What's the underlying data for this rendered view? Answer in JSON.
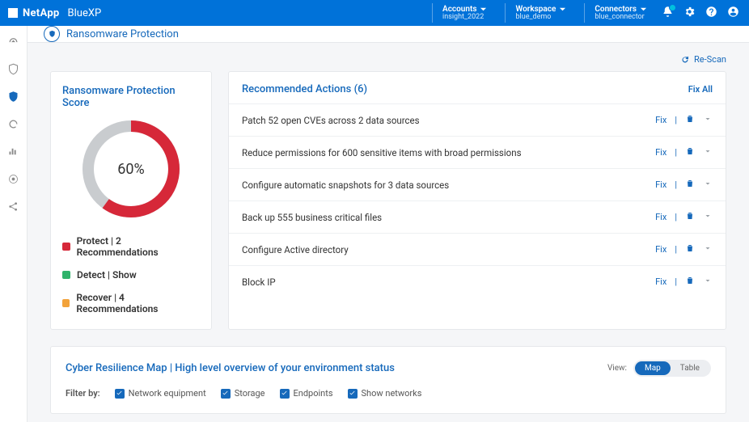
{
  "brand": {
    "company": "NetApp",
    "product": "BlueXP"
  },
  "topbar": {
    "accounts": {
      "label": "Accounts",
      "value": "insight_2022"
    },
    "workspace": {
      "label": "Workspace",
      "value": "blue_demo"
    },
    "connectors": {
      "label": "Connectors",
      "value": "blue_connector"
    }
  },
  "page": {
    "title": "Ransomware Protection",
    "rescan": "Re-Scan"
  },
  "colors": {
    "brand_blue": "#0072d9",
    "link_blue": "#1669bb",
    "protect": "#d62839",
    "detect": "#2fb36b",
    "recover": "#f2a23a",
    "donut_track": "#c9cccf"
  },
  "score": {
    "title": "Ransomware Protection Score",
    "percent": 60,
    "percent_label": "60%",
    "donut": {
      "size": 120,
      "stroke": 14
    },
    "legend": [
      {
        "text": "Protect | 2 Recommendations",
        "color": "#d62839"
      },
      {
        "text": "Detect | Show",
        "color": "#2fb36b"
      },
      {
        "text": "Recover | 4 Recommendations",
        "color": "#f2a23a"
      }
    ]
  },
  "actions": {
    "title": "Recommended Actions (6)",
    "fix_all": "Fix All",
    "fix_label": "Fix",
    "items": [
      {
        "text": "Patch 52 open CVEs across 2 data sources"
      },
      {
        "text": "Reduce permissions for 600 sensitive items with broad permissions"
      },
      {
        "text": "Configure automatic snapshots for 3 data sources"
      },
      {
        "text": "Back up 555 business critical files"
      },
      {
        "text": "Configure Active directory"
      },
      {
        "text": "Block IP"
      }
    ]
  },
  "map": {
    "title": "Cyber Resilience Map | High level overview of your environment status",
    "view_label": "View:",
    "toggle": {
      "map": "Map",
      "table": "Table",
      "active": "map"
    },
    "filter_label": "Filter by:",
    "filters": [
      {
        "label": "Network equipment",
        "checked": true
      },
      {
        "label": "Storage",
        "checked": true
      },
      {
        "label": "Endpoints",
        "checked": true
      },
      {
        "label": "Show networks",
        "checked": true
      }
    ]
  }
}
